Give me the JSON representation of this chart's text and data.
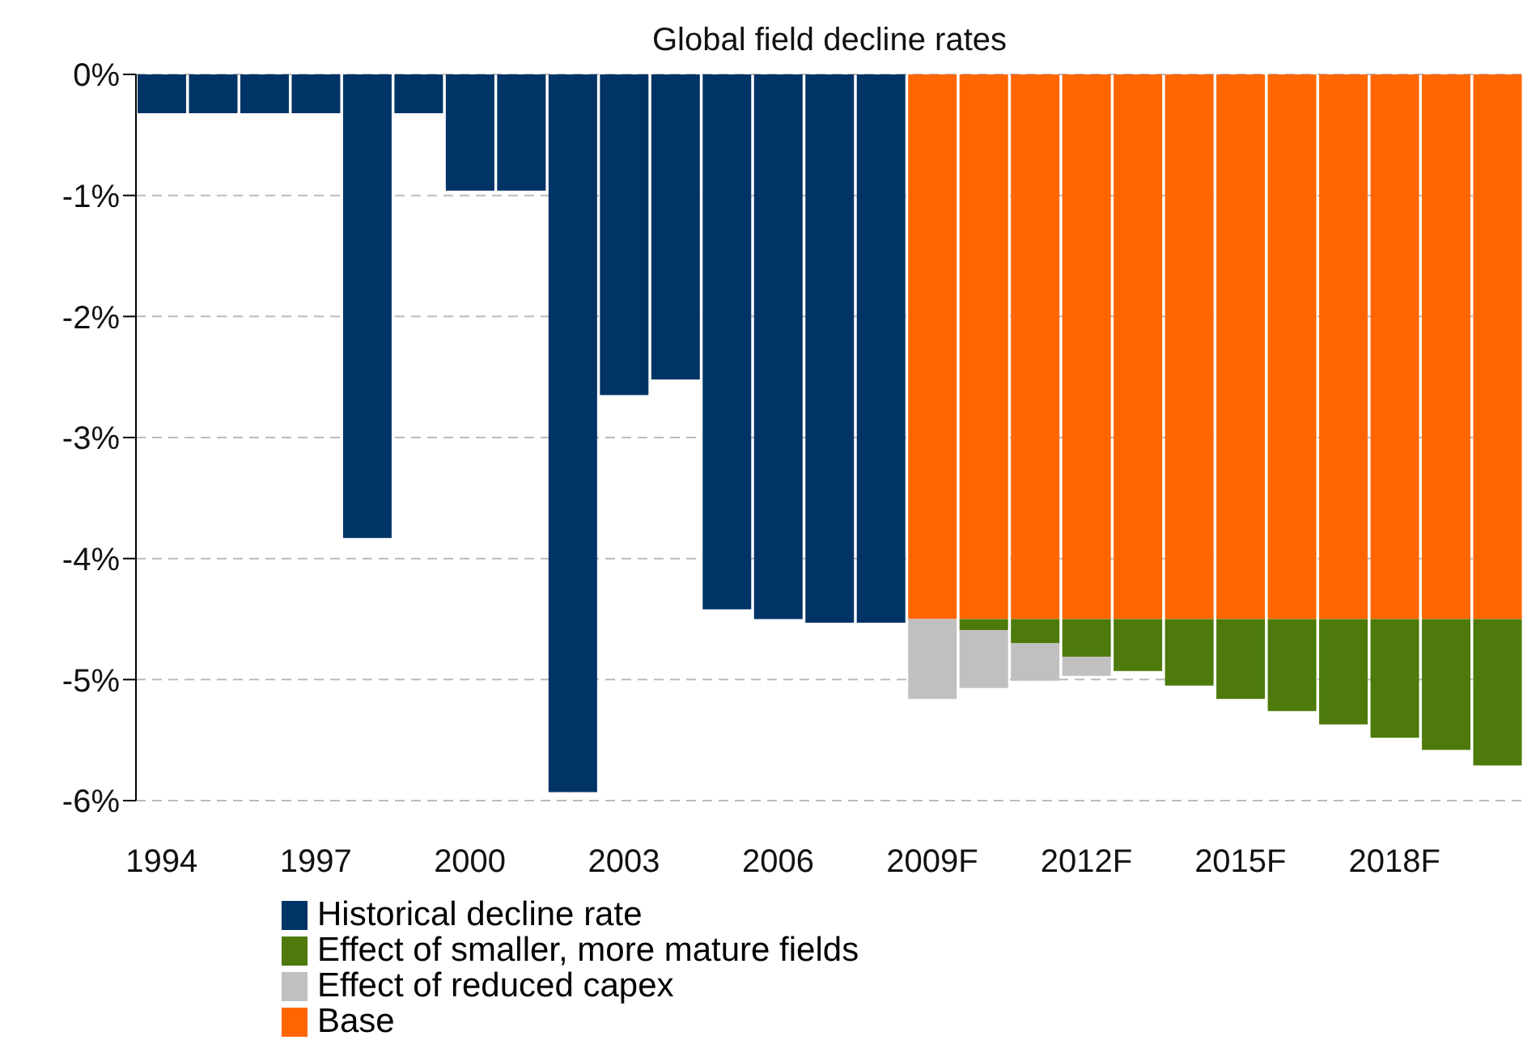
{
  "chart_data": {
    "type": "bar",
    "title": "Global field decline rates",
    "stacked": true,
    "categories": [
      "1994",
      null,
      null,
      "1997",
      null,
      null,
      "2000",
      null,
      null,
      "2003",
      null,
      null,
      "2006",
      null,
      null,
      "2009F",
      null,
      null,
      "2012F",
      null,
      null,
      "2015F",
      null,
      null,
      "2018F",
      null,
      null
    ],
    "series": [
      {
        "name": "Historical decline rate",
        "color": "#003366",
        "values": [
          -0.32,
          -0.32,
          -0.32,
          -0.32,
          -3.83,
          -0.32,
          -0.96,
          -0.96,
          -5.93,
          -2.65,
          -2.52,
          -4.42,
          -4.5,
          -4.53,
          -4.53,
          null,
          null,
          null,
          null,
          null,
          null,
          null,
          null,
          null,
          null,
          null,
          null
        ]
      },
      {
        "name": "Base",
        "color": "#ff6600",
        "values": [
          null,
          null,
          null,
          null,
          null,
          null,
          null,
          null,
          null,
          null,
          null,
          null,
          null,
          null,
          null,
          -4.5,
          -4.5,
          -4.5,
          -4.5,
          -4.5,
          -4.5,
          -4.5,
          -4.5,
          -4.5,
          -4.5,
          -4.5,
          -4.5
        ]
      },
      {
        "name": "Effect of smaller, more mature fields",
        "color": "#4d7a0a",
        "values": [
          null,
          null,
          null,
          null,
          null,
          null,
          null,
          null,
          null,
          null,
          null,
          null,
          null,
          null,
          null,
          null,
          -0.09,
          -0.2,
          -0.31,
          -0.43,
          -0.55,
          -0.66,
          -0.76,
          -0.87,
          -0.98,
          -1.08,
          -1.21
        ]
      },
      {
        "name": "Effect of reduced capex",
        "color": "#c0c0c0",
        "values": [
          null,
          null,
          null,
          null,
          null,
          null,
          null,
          null,
          null,
          null,
          null,
          null,
          null,
          null,
          null,
          -0.66,
          -0.48,
          -0.31,
          -0.16,
          null,
          null,
          null,
          null,
          null,
          null,
          null,
          null
        ]
      }
    ],
    "ylim": [
      -6,
      0
    ],
    "yticks": [
      {
        "value": 0,
        "label": "0%"
      },
      {
        "value": -1,
        "label": "-1%"
      },
      {
        "value": -2,
        "label": "-2%"
      },
      {
        "value": -3,
        "label": "-3%"
      },
      {
        "value": -4,
        "label": "-4%"
      },
      {
        "value": -5,
        "label": "-5%"
      },
      {
        "value": -6,
        "label": "-6%"
      }
    ],
    "grid": "y",
    "legend": "bottom"
  }
}
